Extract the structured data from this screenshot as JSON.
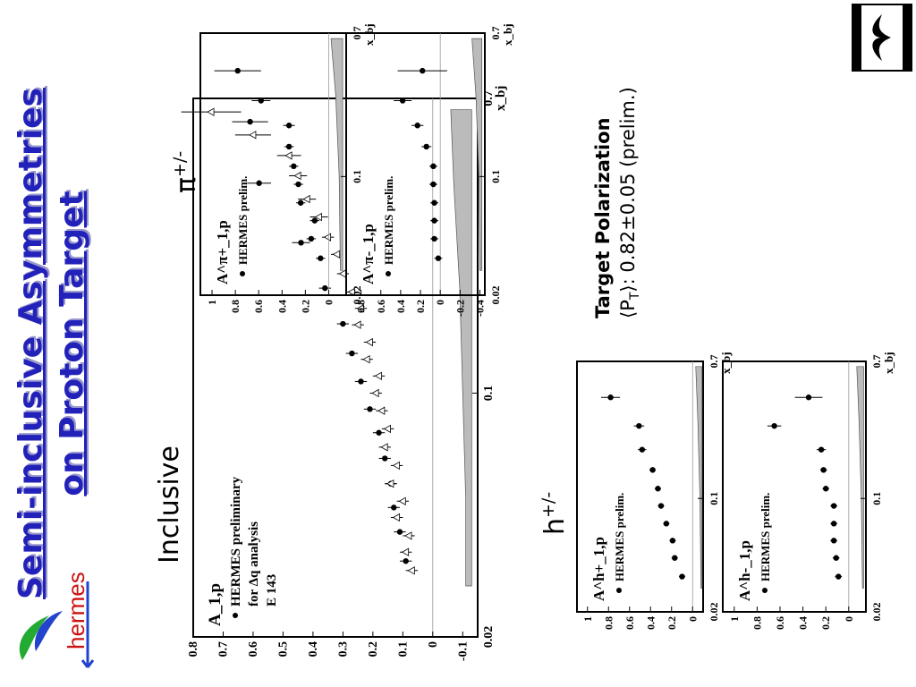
{
  "slide": {
    "title_line1": "Semi-inclusive Asymmetries",
    "title_line2": "on Proton Target",
    "label_inclusive": "Inclusive",
    "label_hadron": "h+/-",
    "label_pion": "π+/-",
    "polarization_title": "Target Polarization",
    "polarization_value": "⟨PT⟩: 0.82±0.05 (prelim.)",
    "logo_text": "hermes"
  },
  "colors": {
    "title": "#2222bb",
    "title_shadow": "#9999cc",
    "logo_text": "#cc1111",
    "logo_green": "#22aa33",
    "logo_blue": "#2244cc",
    "band_fill": "#bbbbbb"
  },
  "chart_data": [
    {
      "name": "inclusive",
      "type": "scatter",
      "xscale": "log",
      "xlim": [
        0.02,
        0.7
      ],
      "ylim": [
        -0.15,
        0.8
      ],
      "xticks": [
        "0.02",
        "0.1",
        "0.7"
      ],
      "yticks": [
        "0.8",
        "0.7",
        "0.6",
        "0.5",
        "0.4",
        "0.3",
        "0.2",
        "0.1",
        "0",
        "-0.1"
      ],
      "xlabel": "x_bj",
      "ylabel": "A_1,p",
      "legend": [
        "HERMES preliminary",
        "for Δq analysis",
        "E 143"
      ],
      "series": [
        {
          "name": "HERMES preliminary",
          "marker": "filled-circle",
          "x": [
            0.033,
            0.04,
            0.047,
            0.055,
            0.065,
            0.077,
            0.09,
            0.108,
            0.13,
            0.158,
            0.2,
            0.27,
            0.4,
            0.6
          ],
          "y": [
            0.09,
            0.11,
            0.13,
            0.14,
            0.16,
            0.18,
            0.21,
            0.24,
            0.27,
            0.3,
            0.36,
            0.44,
            0.58,
            0.61
          ],
          "err": [
            0.02,
            0.02,
            0.02,
            0.02,
            0.02,
            0.02,
            0.02,
            0.02,
            0.02,
            0.02,
            0.02,
            0.03,
            0.04,
            0.06
          ]
        },
        {
          "name": "E 143",
          "marker": "open-triangle",
          "x": [
            0.031,
            0.035,
            0.039,
            0.044,
            0.049,
            0.055,
            0.062,
            0.07,
            0.079,
            0.089,
            0.1,
            0.112,
            0.125,
            0.14,
            0.157,
            0.175,
            0.195,
            0.22,
            0.25,
            0.28,
            0.32,
            0.36,
            0.42,
            0.48,
            0.55,
            0.64
          ],
          "y": [
            0.07,
            0.09,
            0.08,
            0.12,
            0.1,
            0.14,
            0.12,
            0.16,
            0.15,
            0.17,
            0.19,
            0.18,
            0.22,
            0.21,
            0.25,
            0.24,
            0.27,
            0.3,
            0.32,
            0.35,
            0.38,
            0.42,
            0.45,
            0.48,
            0.6,
            0.74
          ],
          "err": [
            0.02,
            0.02,
            0.02,
            0.02,
            0.02,
            0.02,
            0.02,
            0.02,
            0.02,
            0.02,
            0.02,
            0.02,
            0.02,
            0.02,
            0.02,
            0.02,
            0.02,
            0.02,
            0.02,
            0.02,
            0.03,
            0.03,
            0.03,
            0.04,
            0.06,
            0.1
          ]
        }
      ],
      "syst_band": {
        "x": [
          0.028,
          0.05,
          0.1,
          0.2,
          0.4,
          0.65
        ],
        "top": [
          -0.11,
          -0.11,
          -0.1,
          -0.09,
          -0.07,
          -0.06
        ],
        "bottom": -0.13
      }
    },
    {
      "name": "h-plus",
      "type": "scatter",
      "xscale": "log",
      "xlim": [
        0.02,
        0.7
      ],
      "ylim": [
        -0.1,
        1.1
      ],
      "xticks": [
        "0.02",
        "0.1",
        "0.7"
      ],
      "yticks": [
        "1",
        "0.8",
        "0.6",
        "0.4",
        "0.2",
        "0"
      ],
      "xlabel": "x_bj",
      "ylabel": "A^h+_1,p",
      "legend": [
        "HERMES prelim."
      ],
      "series": [
        {
          "name": "HERMES prelim.",
          "marker": "filled-circle",
          "x": [
            0.033,
            0.043,
            0.055,
            0.07,
            0.09,
            0.115,
            0.15,
            0.2,
            0.28,
            0.42
          ],
          "y": [
            0.1,
            0.17,
            0.19,
            0.25,
            0.3,
            0.33,
            0.38,
            0.48,
            0.51,
            0.78
          ],
          "err": [
            0.03,
            0.03,
            0.03,
            0.03,
            0.03,
            0.03,
            0.03,
            0.04,
            0.05,
            0.09
          ]
        }
      ],
      "syst_band": {
        "x": [
          0.028,
          0.1,
          0.3,
          0.65
        ],
        "top": [
          -0.08,
          -0.07,
          -0.05,
          -0.03
        ],
        "bottom": -0.09
      }
    },
    {
      "name": "h-minus",
      "type": "scatter",
      "xscale": "log",
      "xlim": [
        0.02,
        0.7
      ],
      "ylim": [
        -0.15,
        1.1
      ],
      "xticks": [
        "0.02",
        "0.1",
        "0.7"
      ],
      "yticks": [
        "1",
        "0.8",
        "0.6",
        "0.4",
        "0.2",
        "0"
      ],
      "xlabel": "x_bj",
      "ylabel": "A^h-_1,p",
      "legend": [
        "HERMES prelim."
      ],
      "series": [
        {
          "name": "HERMES prelim.",
          "marker": "filled-circle",
          "x": [
            0.033,
            0.043,
            0.055,
            0.07,
            0.09,
            0.115,
            0.15,
            0.2,
            0.28,
            0.42
          ],
          "y": [
            0.09,
            0.11,
            0.13,
            0.13,
            0.13,
            0.2,
            0.22,
            0.24,
            0.65,
            0.35
          ],
          "err": [
            0.03,
            0.03,
            0.03,
            0.03,
            0.03,
            0.03,
            0.03,
            0.04,
            0.06,
            0.12
          ]
        }
      ],
      "syst_band": {
        "x": [
          0.028,
          0.1,
          0.3,
          0.65
        ],
        "top": [
          -0.12,
          -0.11,
          -0.09,
          -0.07
        ],
        "bottom": -0.13
      }
    },
    {
      "name": "pi-plus",
      "type": "scatter",
      "xscale": "log",
      "xlim": [
        0.02,
        0.7
      ],
      "ylim": [
        -0.15,
        1.1
      ],
      "xticks": [
        "0.02",
        "0.1",
        "0.7"
      ],
      "yticks": [
        "1",
        "0.8",
        "0.6",
        "0.4",
        "0.2",
        "0"
      ],
      "xlabel": "x_bj",
      "ylabel": "A^π+_1,p",
      "legend": [
        "HERMES prelim."
      ],
      "series": [
        {
          "name": "HERMES prelim.",
          "marker": "filled-circle",
          "x": [
            0.033,
            0.043,
            0.055,
            0.07,
            0.09,
            0.115,
            0.15,
            0.2,
            0.28,
            0.42
          ],
          "y": [
            0.07,
            0.15,
            0.12,
            0.24,
            0.26,
            0.3,
            0.34,
            0.34,
            0.58,
            0.78
          ],
          "err": [
            0.04,
            0.04,
            0.04,
            0.04,
            0.04,
            0.04,
            0.04,
            0.05,
            0.08,
            0.2
          ]
        }
      ],
      "syst_band": {
        "x": [
          0.028,
          0.1,
          0.3,
          0.65
        ],
        "top": [
          -0.1,
          -0.09,
          -0.06,
          -0.02
        ],
        "bottom": -0.12
      }
    },
    {
      "name": "pi-minus",
      "type": "scatter",
      "xscale": "log",
      "xlim": [
        0.02,
        0.7
      ],
      "ylim": [
        -0.45,
        0.95
      ],
      "xticks": [
        "0.02",
        "0.1",
        "0.7"
      ],
      "yticks": [
        "0.8",
        "0.6",
        "0.4",
        "0.2",
        "0",
        "-0.2",
        "-0.4"
      ],
      "xlabel": "x_bj",
      "ylabel": "A^π-_1,p",
      "legend": [
        "HERMES prelim."
      ],
      "series": [
        {
          "name": "HERMES prelim.",
          "marker": "filled-circle",
          "x": [
            0.033,
            0.043,
            0.055,
            0.07,
            0.09,
            0.115,
            0.15,
            0.2,
            0.28,
            0.42
          ],
          "y": [
            0.02,
            0.06,
            0.06,
            0.06,
            0.07,
            0.07,
            0.14,
            0.23,
            0.38,
            0.18
          ],
          "err": [
            0.04,
            0.04,
            0.04,
            0.04,
            0.04,
            0.04,
            0.05,
            0.06,
            0.09,
            0.25
          ]
        }
      ],
      "syst_band": {
        "x": [
          0.028,
          0.1,
          0.3,
          0.65
        ],
        "top": [
          -0.4,
          -0.39,
          -0.36,
          -0.32
        ],
        "bottom": -0.42
      }
    }
  ]
}
